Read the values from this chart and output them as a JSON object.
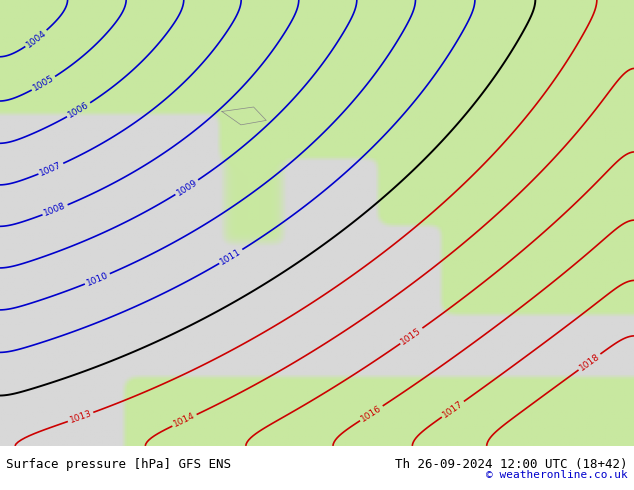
{
  "title_left": "Surface pressure [hPa] GFS ENS",
  "title_right": "Th 26-09-2024 12:00 UTC (18+42)",
  "copyright": "© weatheronline.co.uk",
  "fig_width": 6.34,
  "fig_height": 4.9,
  "dpi": 100,
  "bg_color": "#d8d8d8",
  "land_color": "#c8e8a0",
  "sea_color": "#d8d8d8",
  "blue_color": "#0000cc",
  "red_color": "#cc0000",
  "black_color": "#000000",
  "font_color": "#000000",
  "title_font_size": 9,
  "label_font_size": 7,
  "bottom_label_color": "#000000",
  "copyright_color": "#0000cc"
}
